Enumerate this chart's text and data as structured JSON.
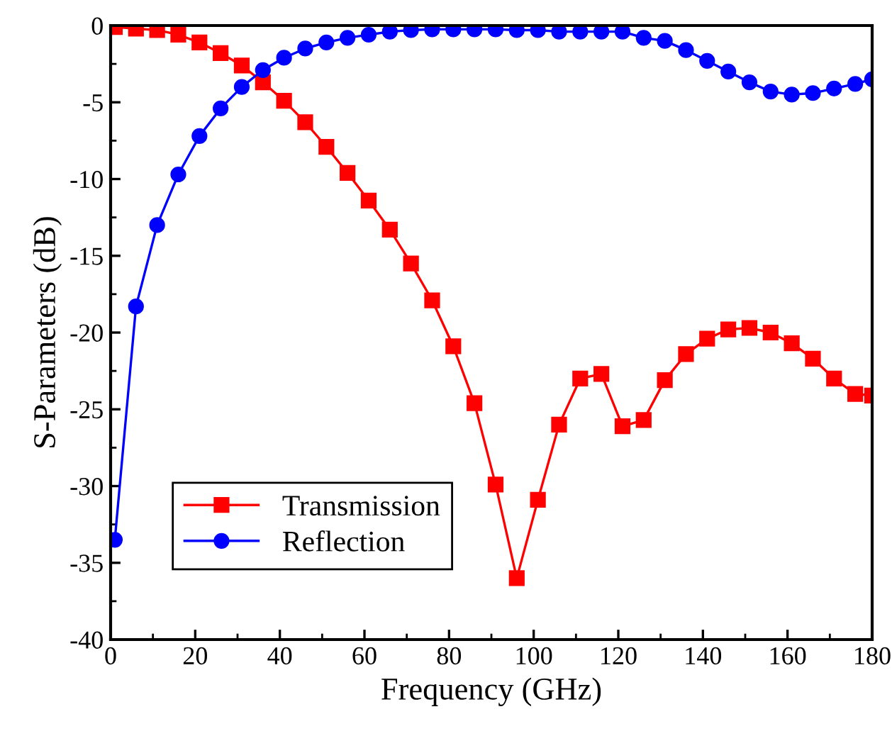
{
  "chart_data": {
    "type": "line",
    "xlabel": "Frequency (GHz)",
    "ylabel": "S-Parameters (dB)",
    "x": [
      1,
      6,
      11,
      16,
      21,
      26,
      31,
      36,
      41,
      46,
      51,
      56,
      61,
      66,
      71,
      76,
      81,
      86,
      91,
      96,
      101,
      106,
      111,
      116,
      121,
      126,
      131,
      136,
      141,
      146,
      151,
      156,
      161,
      166,
      171,
      176,
      180
    ],
    "series": [
      {
        "name": "Transmission",
        "color": "#ff0000",
        "marker": "square",
        "values": [
          -0.1,
          -0.2,
          -0.3,
          -0.6,
          -1.1,
          -1.8,
          -2.6,
          -3.7,
          -4.9,
          -6.3,
          -7.9,
          -9.6,
          -11.4,
          -13.3,
          -15.5,
          -17.9,
          -20.9,
          -24.6,
          -29.9,
          -36.0,
          -30.9,
          -26.0,
          -23.0,
          -22.7,
          -26.1,
          -25.7,
          -23.1,
          -21.4,
          -20.4,
          -19.8,
          -19.7,
          -20.0,
          -20.7,
          -21.7,
          -23.0,
          -24.0,
          -24.1
        ]
      },
      {
        "name": "Reflection",
        "color": "#0000ff",
        "marker": "circle",
        "values": [
          -33.5,
          -18.3,
          -13.0,
          -9.7,
          -7.2,
          -5.4,
          -4.0,
          -2.9,
          -2.1,
          -1.5,
          -1.1,
          -0.8,
          -0.6,
          -0.4,
          -0.3,
          -0.25,
          -0.25,
          -0.25,
          -0.25,
          -0.3,
          -0.3,
          -0.4,
          -0.4,
          -0.4,
          -0.4,
          -0.8,
          -1.0,
          -1.6,
          -2.3,
          -3.0,
          -3.7,
          -4.3,
          -4.5,
          -4.4,
          -4.1,
          -3.8,
          -3.5
        ]
      }
    ],
    "xlim": [
      0,
      180
    ],
    "xticks": [
      0,
      20,
      40,
      60,
      80,
      100,
      120,
      140,
      160,
      180
    ],
    "ylim": [
      -40,
      0
    ],
    "yticks": [
      -40,
      -35,
      -30,
      -25,
      -20,
      -15,
      -10,
      -5,
      0
    ],
    "legend": "bottom left",
    "line_style": "solid"
  }
}
